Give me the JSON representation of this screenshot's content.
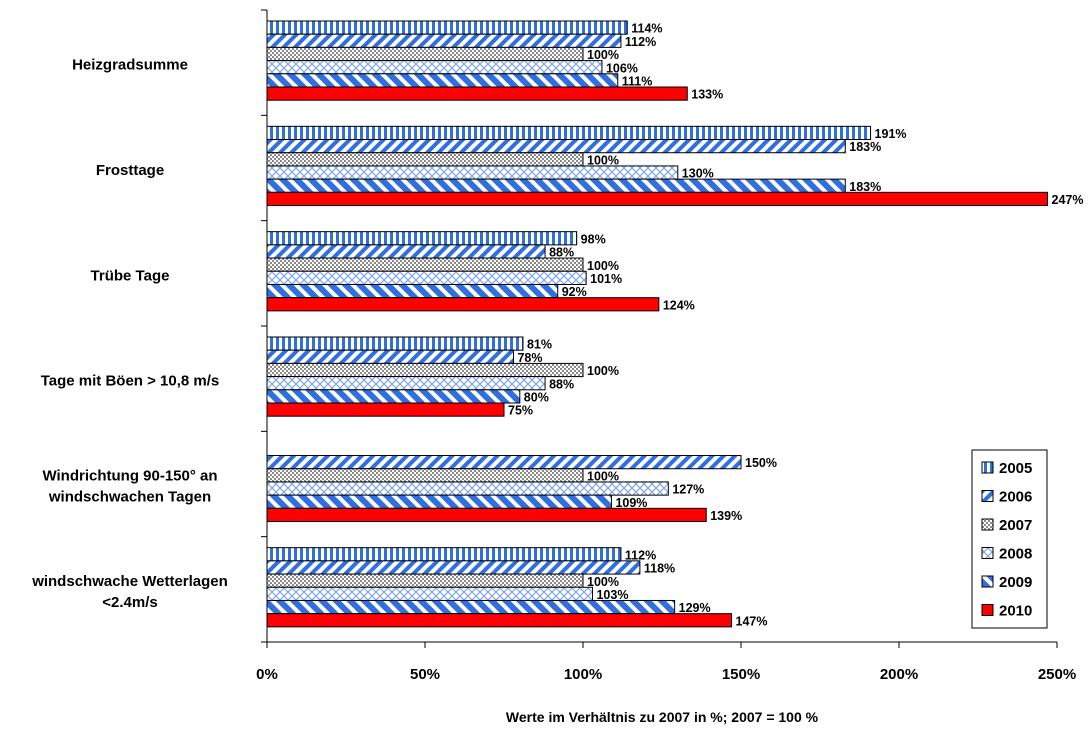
{
  "chart_data": {
    "type": "bar",
    "orientation": "horizontal",
    "categories": [
      "Heizgradsumme",
      "Frosttage",
      "Trübe Tage",
      "Tage mit Böen > 10,8 m/s",
      "Windrichtung 90-150° an windschwachen Tagen",
      "windschwache Wetterlagen <2.4m/s"
    ],
    "category_lines": [
      [
        "Heizgradsumme"
      ],
      [
        "Frosttage"
      ],
      [
        "Trübe Tage"
      ],
      [
        "Tage mit Böen > 10,8 m/s"
      ],
      [
        "Windrichtung 90-150° an",
        "windschwachen Tagen"
      ],
      [
        "windschwache Wetterlagen",
        "<2.4m/s"
      ]
    ],
    "series": [
      {
        "name": "2005",
        "pattern": "vertical-stripes",
        "color": "#2f6fe0",
        "values": [
          114,
          191,
          98,
          81,
          null,
          112
        ],
        "labels": [
          "114%",
          "191%",
          "98%",
          "81%",
          null,
          "112%"
        ]
      },
      {
        "name": "2006",
        "pattern": "diagonal-stripes",
        "color": "#2f6fe0",
        "values": [
          112,
          183,
          88,
          78,
          150,
          118
        ],
        "labels": [
          "112%",
          "183%",
          "88%",
          "78%",
          "150%",
          "118%"
        ]
      },
      {
        "name": "2007",
        "pattern": "checker",
        "color": "#9a9a9a",
        "values": [
          100,
          100,
          100,
          100,
          100,
          100
        ],
        "labels": [
          "100%",
          "100%",
          "100%",
          "100%",
          "100%",
          "100%"
        ]
      },
      {
        "name": "2008",
        "pattern": "crosshatch",
        "color": "#7fa6e6",
        "values": [
          106,
          130,
          101,
          88,
          127,
          103
        ],
        "labels": [
          "106%",
          "130%",
          "101%",
          "88%",
          "127%",
          "103%"
        ]
      },
      {
        "name": "2009",
        "pattern": "wide-diagonal",
        "color": "#2f6fe0",
        "values": [
          111,
          183,
          92,
          80,
          109,
          129
        ],
        "labels": [
          "111%",
          "183%",
          "92%",
          "80%",
          "109%",
          "129%"
        ]
      },
      {
        "name": "2010",
        "pattern": "solid",
        "color": "#ff0000",
        "values": [
          133,
          247,
          124,
          75,
          139,
          147
        ],
        "labels": [
          "133%",
          "247%",
          "124%",
          "75%",
          "139%",
          "147%"
        ]
      }
    ],
    "xlim": [
      0,
      250
    ],
    "xticks": [
      "0%",
      "50%",
      "100%",
      "150%",
      "200%",
      "250%"
    ],
    "xlabel": "Werte im Verhältnis zu 2007 in %; 2007 = 100 %",
    "ylabel": "",
    "title": "",
    "grid": false,
    "legend_position": "bottom-right"
  }
}
